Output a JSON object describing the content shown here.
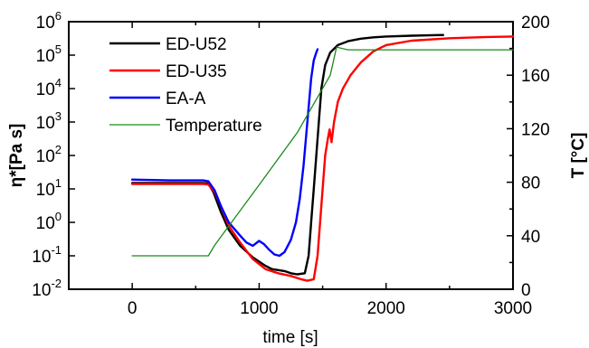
{
  "chart_data": {
    "type": "line",
    "xlabel": "time [s]",
    "ylabel_left": "η*[Pa s]",
    "ylabel_right": "T [°C]",
    "x_range": [
      -500,
      3000
    ],
    "x_ticks": [
      0,
      1000,
      2000,
      3000
    ],
    "x_tick_labels": [
      "0",
      "1000",
      "2000",
      "3000"
    ],
    "y_left_scale": "log",
    "y_left_range": [
      0.01,
      1000000
    ],
    "y_left_exponents": [
      -2,
      -1,
      0,
      1,
      2,
      3,
      4,
      5,
      6
    ],
    "y_left_tick_mantissa": "10",
    "y_left_tick_exponents": [
      "-2",
      "-1",
      "0",
      "1",
      "2",
      "3",
      "4",
      "5",
      "6"
    ],
    "y_right_scale": "linear",
    "y_right_range": [
      0,
      200
    ],
    "y_right_ticks": [
      0,
      40,
      80,
      120,
      160,
      200
    ],
    "y_right_tick_labels": [
      "0",
      "40",
      "80",
      "120",
      "160",
      "200"
    ],
    "grid": false,
    "legend_position": "top-left",
    "series": [
      {
        "name": "ED-U52",
        "color": "#000000",
        "axis": "left",
        "points": [
          [
            0,
            15
          ],
          [
            300,
            15
          ],
          [
            560,
            15
          ],
          [
            600,
            14.5
          ],
          [
            640,
            8
          ],
          [
            700,
            2
          ],
          [
            760,
            0.6
          ],
          [
            850,
            0.2
          ],
          [
            950,
            0.09
          ],
          [
            1050,
            0.05
          ],
          [
            1100,
            0.04
          ],
          [
            1200,
            0.035
          ],
          [
            1250,
            0.03
          ],
          [
            1300,
            0.028
          ],
          [
            1360,
            0.03
          ],
          [
            1390,
            0.1
          ],
          [
            1410,
            1
          ],
          [
            1430,
            10
          ],
          [
            1450,
            100
          ],
          [
            1470,
            1000
          ],
          [
            1490,
            10000
          ],
          [
            1520,
            50000
          ],
          [
            1560,
            120000
          ],
          [
            1620,
            200000
          ],
          [
            1700,
            260000
          ],
          [
            1800,
            310000
          ],
          [
            1900,
            340000
          ],
          [
            2000,
            360000
          ],
          [
            2200,
            380000
          ],
          [
            2450,
            400000
          ]
        ]
      },
      {
        "name": "ED-U35",
        "color": "#ff0000",
        "axis": "left",
        "points": [
          [
            0,
            14
          ],
          [
            300,
            14
          ],
          [
            560,
            14
          ],
          [
            600,
            13.5
          ],
          [
            650,
            8
          ],
          [
            700,
            3
          ],
          [
            760,
            0.8
          ],
          [
            850,
            0.25
          ],
          [
            950,
            0.08
          ],
          [
            1050,
            0.04
          ],
          [
            1150,
            0.03
          ],
          [
            1250,
            0.025
          ],
          [
            1330,
            0.02
          ],
          [
            1380,
            0.018
          ],
          [
            1430,
            0.02
          ],
          [
            1460,
            0.1
          ],
          [
            1480,
            1
          ],
          [
            1500,
            10
          ],
          [
            1520,
            100
          ],
          [
            1540,
            300
          ],
          [
            1555,
            600
          ],
          [
            1570,
            250
          ],
          [
            1590,
            1000
          ],
          [
            1620,
            4000
          ],
          [
            1660,
            10000
          ],
          [
            1720,
            25000
          ],
          [
            1800,
            60000
          ],
          [
            1900,
            130000
          ],
          [
            2000,
            200000
          ],
          [
            2200,
            270000
          ],
          [
            2500,
            320000
          ],
          [
            2800,
            350000
          ],
          [
            3000,
            360000
          ]
        ]
      },
      {
        "name": "EA-A",
        "color": "#0000ff",
        "axis": "left",
        "points": [
          [
            0,
            19
          ],
          [
            300,
            18
          ],
          [
            560,
            18
          ],
          [
            600,
            17
          ],
          [
            650,
            9
          ],
          [
            700,
            3
          ],
          [
            760,
            1
          ],
          [
            850,
            0.4
          ],
          [
            900,
            0.25
          ],
          [
            950,
            0.2
          ],
          [
            1000,
            0.28
          ],
          [
            1040,
            0.22
          ],
          [
            1080,
            0.15
          ],
          [
            1120,
            0.11
          ],
          [
            1160,
            0.1
          ],
          [
            1200,
            0.13
          ],
          [
            1250,
            0.3
          ],
          [
            1290,
            1
          ],
          [
            1320,
            5
          ],
          [
            1350,
            50
          ],
          [
            1380,
            1000
          ],
          [
            1410,
            20000
          ],
          [
            1430,
            70000
          ],
          [
            1450,
            120000
          ],
          [
            1460,
            150000
          ]
        ]
      },
      {
        "name": "Temperature",
        "color": "#1a8a1a",
        "axis": "right",
        "points": [
          [
            0,
            25
          ],
          [
            300,
            25
          ],
          [
            600,
            25
          ],
          [
            650,
            33
          ],
          [
            1000,
            78
          ],
          [
            1300,
            117
          ],
          [
            1560,
            160
          ],
          [
            1610,
            181
          ],
          [
            1700,
            179
          ],
          [
            2000,
            179
          ],
          [
            2500,
            179
          ],
          [
            3000,
            179
          ]
        ]
      }
    ]
  }
}
